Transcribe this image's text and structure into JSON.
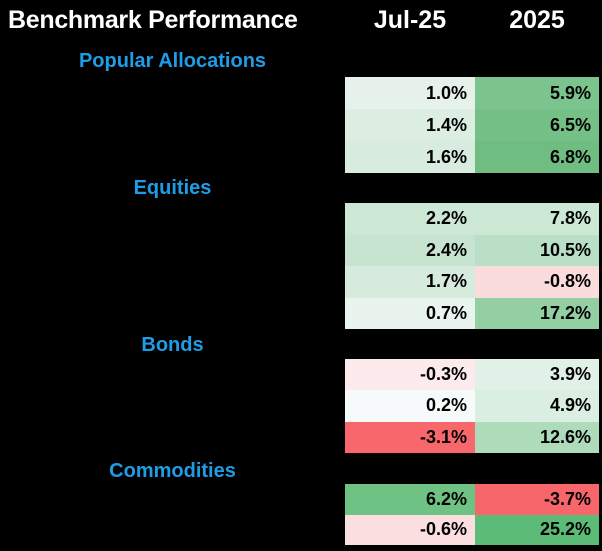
{
  "header": {
    "title": "Benchmark Performance",
    "col_jul": "Jul-25",
    "col_2025": "2025"
  },
  "colors": {
    "background": "#000000",
    "accent_blue": "#1e9de6",
    "header_text": "#ffffff",
    "cell_text": "#000000",
    "strong_green": "#5cbc77",
    "strong_red": "#f7666b"
  },
  "sections": [
    {
      "label": "Popular Allocations",
      "rows": [
        {
          "jul": "1.0%",
          "jul_color": "#e6f1eb",
          "ytd": "5.9%",
          "ytd_color": "#7cc48d"
        },
        {
          "jul": "1.4%",
          "jul_color": "#dcede2",
          "ytd": "6.5%",
          "ytd_color": "#75c087"
        },
        {
          "jul": "1.6%",
          "jul_color": "#d7ebde",
          "ytd": "6.8%",
          "ytd_color": "#70bd82"
        }
      ]
    },
    {
      "label": "Equities",
      "rows": [
        {
          "jul": "2.2%",
          "jul_color": "#cde7d5",
          "ytd": "7.8%",
          "ytd_color": "#cce8d5"
        },
        {
          "jul": "2.4%",
          "jul_color": "#c7e4d0",
          "ytd": "10.5%",
          "ytd_color": "#b9dfc6"
        },
        {
          "jul": "1.7%",
          "jul_color": "#d6ebdd",
          "ytd": "-0.8%",
          "ytd_color": "#fadcdc"
        },
        {
          "jul": "0.7%",
          "jul_color": "#eaf4ef",
          "ytd": "17.2%",
          "ytd_color": "#94cfa4"
        }
      ]
    },
    {
      "label": "Bonds",
      "rows": [
        {
          "jul": "-0.3%",
          "jul_color": "#fceaed",
          "ytd": "3.9%",
          "ytd_color": "#e1f1e8"
        },
        {
          "jul": "0.2%",
          "jul_color": "#f7fafa",
          "ytd": "4.9%",
          "ytd_color": "#daeee1"
        },
        {
          "jul": "-3.1%",
          "jul_color": "#f7676c",
          "ytd": "12.6%",
          "ytd_color": "#aedcbb"
        }
      ]
    },
    {
      "label": "Commodities",
      "rows": [
        {
          "jul": "6.2%",
          "jul_color": "#6ec283",
          "ytd": "-3.7%",
          "ytd_color": "#f7666b"
        },
        {
          "jul": "-0.6%",
          "jul_color": "#fbdedf",
          "ytd": "25.2%",
          "ytd_color": "#5cbc77"
        }
      ]
    }
  ],
  "chart_data": {
    "type": "heatmap",
    "title": "Benchmark Performance",
    "columns": [
      "Jul-25",
      "2025"
    ],
    "units": "%",
    "row_groups": [
      {
        "group": "Popular Allocations",
        "rows": [
          [
            1.0,
            5.9
          ],
          [
            1.4,
            6.5
          ],
          [
            1.6,
            6.8
          ]
        ]
      },
      {
        "group": "Equities",
        "rows": [
          [
            2.2,
            7.8
          ],
          [
            2.4,
            10.5
          ],
          [
            1.7,
            -0.8
          ],
          [
            0.7,
            17.2
          ]
        ]
      },
      {
        "group": "Bonds",
        "rows": [
          [
            -0.3,
            3.9
          ],
          [
            0.2,
            4.9
          ],
          [
            -3.1,
            12.6
          ]
        ]
      },
      {
        "group": "Commodities",
        "rows": [
          [
            6.2,
            -3.7
          ],
          [
            -0.6,
            25.2
          ]
        ]
      }
    ],
    "color_scale": "negative values shaded red, positive values shaded green; intensity scales with magnitude",
    "legend_position": "none",
    "row_labels_visible": false
  }
}
